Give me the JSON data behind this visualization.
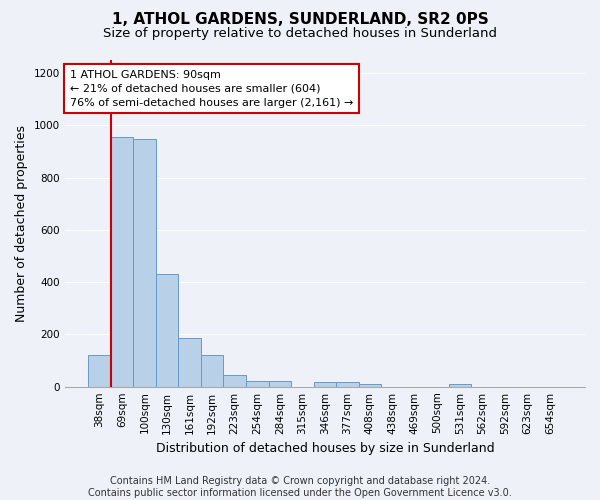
{
  "title": "1, ATHOL GARDENS, SUNDERLAND, SR2 0PS",
  "subtitle": "Size of property relative to detached houses in Sunderland",
  "xlabel": "Distribution of detached houses by size in Sunderland",
  "ylabel": "Number of detached properties",
  "footer_line1": "Contains HM Land Registry data © Crown copyright and database right 2024.",
  "footer_line2": "Contains public sector information licensed under the Open Government Licence v3.0.",
  "categories": [
    "38sqm",
    "69sqm",
    "100sqm",
    "130sqm",
    "161sqm",
    "192sqm",
    "223sqm",
    "254sqm",
    "284sqm",
    "315sqm",
    "346sqm",
    "377sqm",
    "408sqm",
    "438sqm",
    "469sqm",
    "500sqm",
    "531sqm",
    "562sqm",
    "592sqm",
    "623sqm",
    "654sqm"
  ],
  "values": [
    120,
    955,
    948,
    430,
    185,
    120,
    45,
    20,
    20,
    0,
    18,
    18,
    10,
    0,
    0,
    0,
    10,
    0,
    0,
    0,
    0
  ],
  "bar_color": "#b8d0e8",
  "bar_edge_color": "#6699cc",
  "annotation_text": "1 ATHOL GARDENS: 90sqm\n← 21% of detached houses are smaller (604)\n76% of semi-detached houses are larger (2,161) →",
  "annotation_box_facecolor": "#ffffff",
  "annotation_border_color": "#cc0000",
  "vline_color": "#cc0000",
  "vline_x": 0.5,
  "ylim": [
    0,
    1250
  ],
  "yticks": [
    0,
    200,
    400,
    600,
    800,
    1000,
    1200
  ],
  "title_fontsize": 11,
  "subtitle_fontsize": 9.5,
  "ylabel_fontsize": 9,
  "xlabel_fontsize": 9,
  "annot_fontsize": 8,
  "tick_fontsize": 7.5,
  "footer_fontsize": 7,
  "background_color": "#eef2f8",
  "grid_color": "#ffffff"
}
